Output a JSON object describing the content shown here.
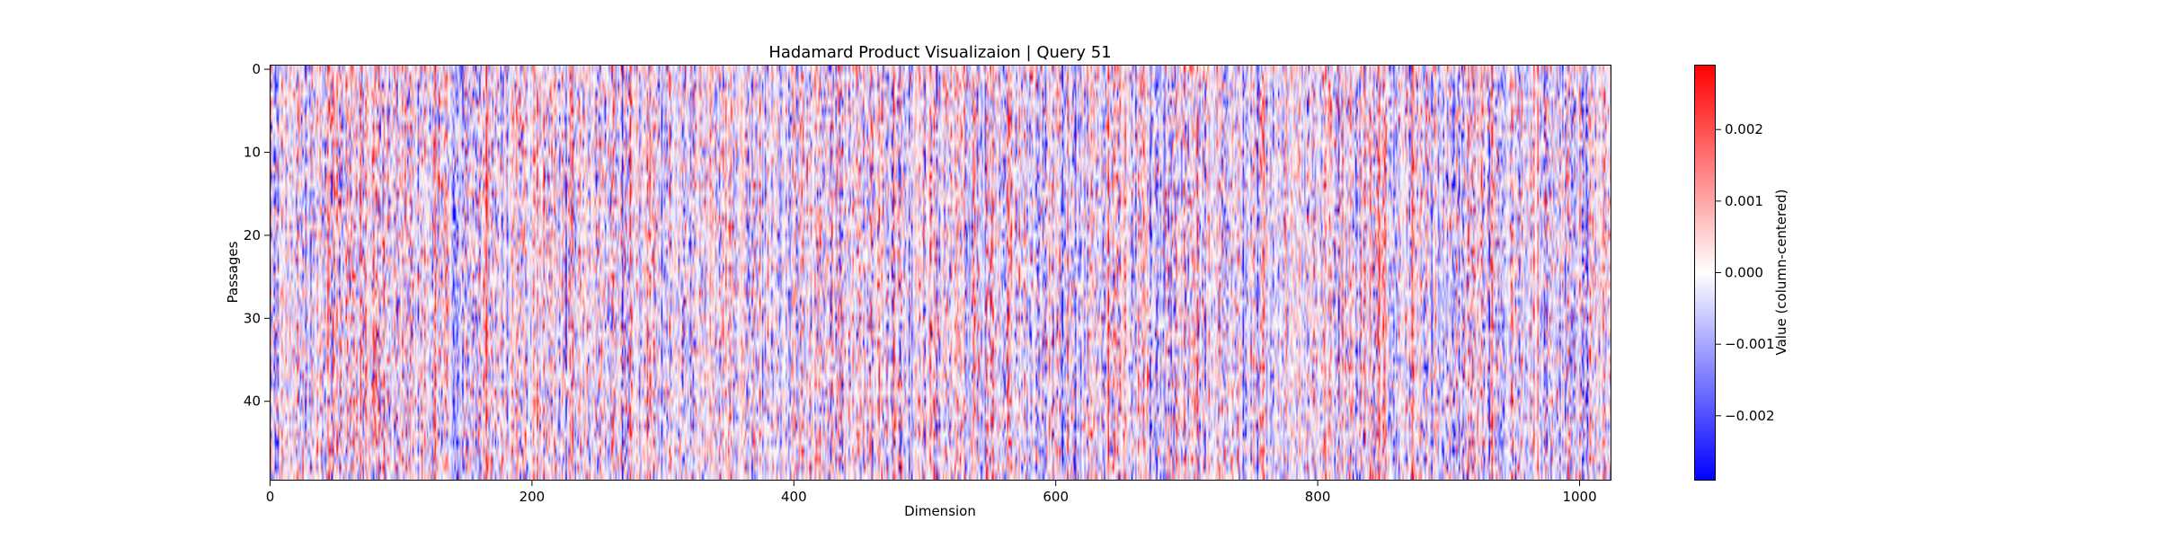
{
  "chart_data": {
    "type": "heatmap",
    "title": "Hadamard Product Visualizaion | Query 51",
    "xlabel": "Dimension",
    "ylabel": "Passages",
    "xlim": [
      0,
      1024
    ],
    "ylim": [
      50,
      0
    ],
    "n_rows": 50,
    "n_cols": 1024,
    "x_ticks": [
      0,
      200,
      400,
      600,
      800,
      1000
    ],
    "y_ticks": [
      0,
      10,
      20,
      30,
      40
    ],
    "colormap": [
      "#0000ff",
      "#ffffff",
      "#ff0000"
    ],
    "grid": false,
    "colorbar": {
      "label": "Value (column-centered)",
      "range": [
        -0.0029,
        0.0029
      ],
      "ticks": [
        0.002,
        0.001,
        0.0,
        -0.001,
        -0.002
      ],
      "tick_labels": [
        "0.002",
        "0.001",
        "0.000",
        "−0.001",
        "−0.002"
      ]
    }
  }
}
